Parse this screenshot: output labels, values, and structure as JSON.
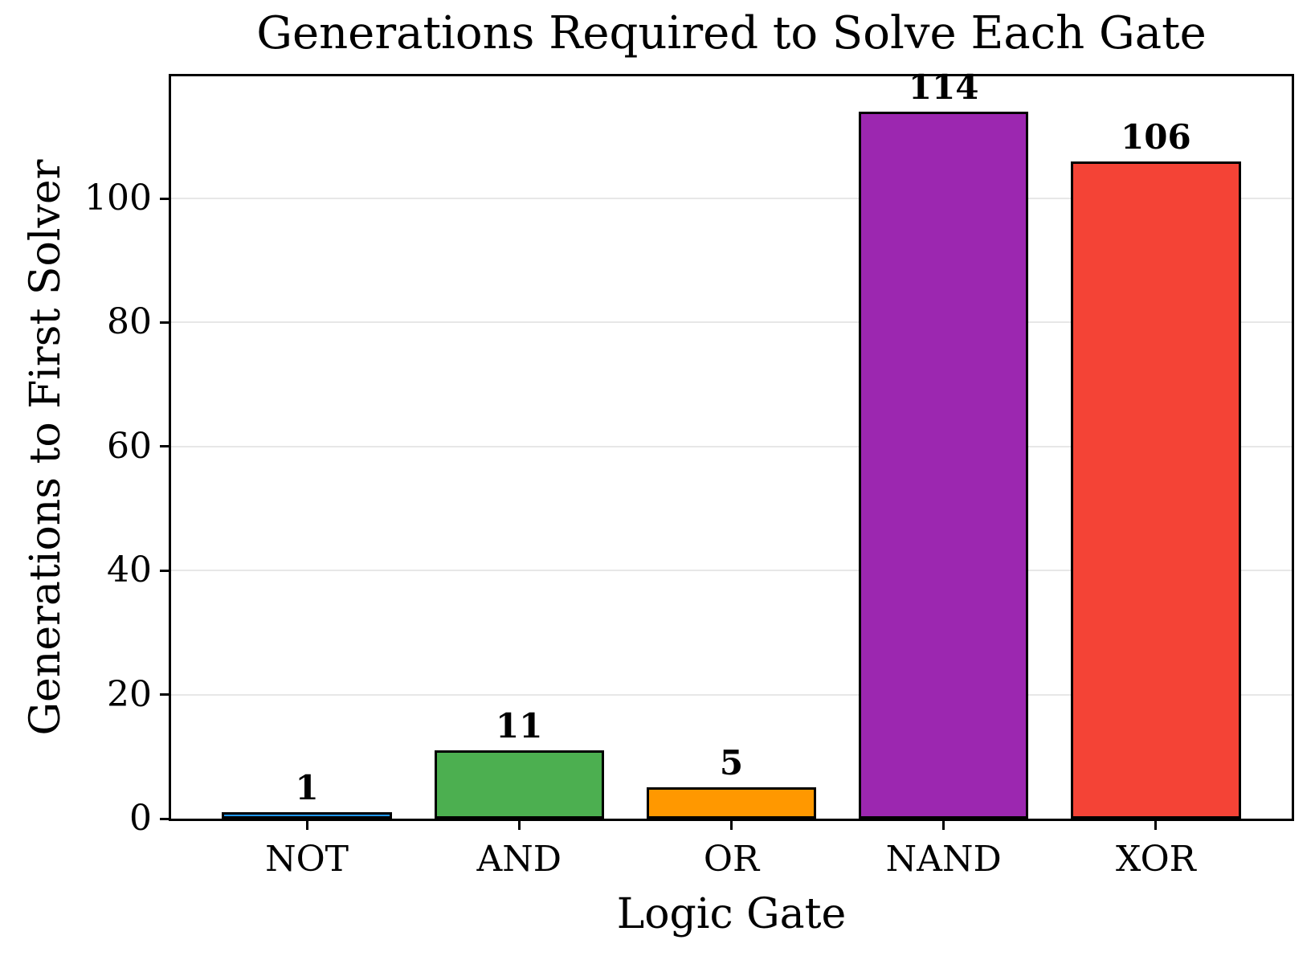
{
  "chart_data": {
    "type": "bar",
    "title": "Generations Required to Solve Each Gate",
    "xlabel": "Logic Gate",
    "ylabel": "Generations to First Solver",
    "categories": [
      "NOT",
      "AND",
      "OR",
      "NAND",
      "XOR"
    ],
    "values": [
      1,
      11,
      5,
      114,
      106
    ],
    "bar_labels": [
      "1",
      "11",
      "5",
      "114",
      "106"
    ],
    "bar_colors": [
      "#2196f3",
      "#4caf50",
      "#ff9800",
      "#9c27b0",
      "#f44336"
    ],
    "bar_edge_color": "#000000",
    "ylim": [
      0,
      119.7
    ],
    "yticks": [
      0,
      20,
      40,
      60,
      80,
      100
    ],
    "grid": "horizontal",
    "grid_color": "#e7e7e7",
    "legend_position": "none",
    "background_color": "#ffffff",
    "text_color": "#000000"
  }
}
